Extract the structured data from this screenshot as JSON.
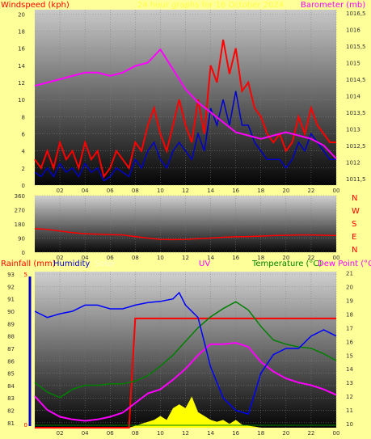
{
  "header": {
    "windspeed_label": "Windspeed (kph)",
    "barometer_label": "Barometer (mb)",
    "title_partial": "24 hour graphs for 16 October 2024",
    "rainfall_label": "Rainfall (mm)",
    "humidity_label": "Humidity",
    "solar_label": "Solar",
    "uv_label": "UV",
    "temperature_label": "Temperature (°C)",
    "dewpoint_label": "Dew Point (°C"
  },
  "direction_letters": [
    "N",
    "W",
    "S",
    "E",
    "N"
  ],
  "colors": {
    "background": "#ffff99",
    "windspeed": "#ff0000",
    "gust_avg": "#0000cc",
    "barometer": "#ff00ff",
    "direction": "#ff0000",
    "humidity": "#0000ff",
    "temperature": "#008000",
    "dewpoint": "#ff00ff",
    "rain": "#ff0000",
    "solar": "#ffff00"
  },
  "chart_data": [
    {
      "type": "line",
      "x_ticks": [
        "02",
        "04",
        "06",
        "08",
        "10",
        "12",
        "14",
        "16",
        "18",
        "20",
        "22",
        "00"
      ],
      "y_ticks_left": [
        "0",
        "2",
        "4",
        "6",
        "8",
        "10",
        "12",
        "14",
        "16",
        "18",
        "20"
      ],
      "y_ticks_right": [
        "1011,5",
        "1012",
        "1012,5",
        "1013",
        "1013,5",
        "1014",
        "1014,5",
        "1015",
        "1015,5",
        "1016",
        "1016,5"
      ],
      "ylim_left": [
        0,
        20.5
      ],
      "ylim_right": [
        1011.3,
        1016.6
      ],
      "xlim": [
        0,
        24
      ],
      "series": [
        {
          "name": "Windspeed (kph)",
          "axis": "left",
          "x": [
            0,
            0.5,
            1,
            1.5,
            2,
            2.5,
            3,
            3.5,
            4,
            4.5,
            5,
            5.5,
            6,
            6.5,
            7,
            7.5,
            8,
            8.5,
            9,
            9.5,
            10,
            10.5,
            11,
            11.5,
            12,
            12.5,
            13,
            13.5,
            14,
            14.5,
            15,
            15.5,
            16,
            16.5,
            17,
            17.5,
            18,
            18.5,
            19,
            19.5,
            20,
            20.5,
            21,
            21.5,
            22,
            22.5,
            23,
            23.5,
            24
          ],
          "y": [
            3,
            2,
            4,
            2,
            5,
            3,
            4,
            2,
            5,
            3,
            4,
            1,
            2,
            4,
            3,
            2,
            5,
            4,
            7,
            9,
            6,
            4,
            7,
            10,
            7,
            5,
            10,
            6,
            14,
            12,
            17,
            13,
            16,
            11,
            12,
            9,
            8,
            6,
            5,
            6,
            4,
            5,
            8,
            6,
            9,
            7,
            6,
            5,
            5
          ]
        },
        {
          "name": "Average windspeed",
          "axis": "left",
          "x": [
            0,
            0.5,
            1,
            1.5,
            2,
            2.5,
            3,
            3.5,
            4,
            4.5,
            5,
            5.5,
            6,
            6.5,
            7,
            7.5,
            8,
            8.5,
            9,
            9.5,
            10,
            10.5,
            11,
            11.5,
            12,
            12.5,
            13,
            13.5,
            14,
            14.5,
            15,
            15.5,
            16,
            16.5,
            17,
            17.5,
            18,
            18.5,
            19,
            19.5,
            20,
            20.5,
            21,
            21.5,
            22,
            22.5,
            23,
            23.5,
            24
          ],
          "y": [
            1.5,
            1,
            2,
            1,
            2.5,
            1.5,
            2,
            1,
            2.5,
            1.5,
            2,
            0.5,
            1,
            2,
            1.5,
            1,
            3,
            2,
            4,
            5,
            3,
            2,
            4,
            5,
            4,
            3,
            6,
            4,
            9,
            7,
            10,
            7,
            11,
            7,
            7,
            5,
            4,
            3,
            3,
            3,
            2,
            3,
            5,
            4,
            6,
            5,
            4,
            3,
            3
          ]
        },
        {
          "name": "Barometer (mb)",
          "axis": "right",
          "x": [
            0,
            1,
            2,
            3,
            4,
            5,
            6,
            7,
            8,
            9,
            10,
            11,
            12,
            13,
            14,
            15,
            16,
            17,
            18,
            19,
            20,
            21,
            22,
            23,
            24
          ],
          "y": [
            1014.3,
            1014.4,
            1014.5,
            1014.6,
            1014.7,
            1014.7,
            1014.6,
            1014.7,
            1014.9,
            1015.0,
            1015.4,
            1014.8,
            1014.2,
            1013.8,
            1013.5,
            1013.2,
            1012.9,
            1012.8,
            1012.7,
            1012.8,
            1012.9,
            1012.8,
            1012.7,
            1012.5,
            1012.1
          ]
        }
      ]
    },
    {
      "type": "line",
      "x_ticks": [
        "02",
        "04",
        "06",
        "08",
        "10",
        "12",
        "14",
        "16",
        "18",
        "20",
        "22",
        "00"
      ],
      "y_ticks_left": [
        "0",
        "90",
        "180",
        "270",
        "360"
      ],
      "ylim_left": [
        0,
        360
      ],
      "xlim": [
        0,
        24
      ],
      "series": [
        {
          "name": "Wind direction",
          "x": [
            0,
            1,
            2,
            3,
            4,
            5,
            6,
            7,
            8,
            9,
            10,
            11,
            12,
            13,
            14,
            15,
            16,
            17,
            18,
            19,
            20,
            21,
            22,
            23,
            24
          ],
          "y": [
            150,
            145,
            135,
            125,
            118,
            115,
            112,
            110,
            100,
            90,
            82,
            80,
            82,
            86,
            90,
            95,
            98,
            100,
            103,
            106,
            108,
            110,
            110,
            108,
            106
          ]
        }
      ]
    },
    {
      "type": "line",
      "x_ticks": [
        "02",
        "04",
        "06",
        "08",
        "10",
        "12",
        "14",
        "16",
        "18",
        "20",
        "22",
        "00"
      ],
      "y_ticks_left": [
        "81",
        "82",
        "83",
        "84",
        "85",
        "86",
        "87",
        "88",
        "89",
        "90",
        "91",
        "92",
        "93"
      ],
      "y_ticks_right": [
        "10",
        "11",
        "12",
        "13",
        "14",
        "15",
        "16",
        "17",
        "18",
        "19",
        "20",
        "21"
      ],
      "rain_ticks": [
        "0",
        "5"
      ],
      "ylim_left": [
        80.6,
        93.2
      ],
      "ylim_right": [
        9.7,
        21.1
      ],
      "xlim": [
        0,
        24
      ],
      "series": [
        {
          "name": "Humidity",
          "axis": "left",
          "x": [
            0,
            1,
            2,
            3,
            4,
            5,
            6,
            7,
            8,
            9,
            10,
            11,
            11.5,
            12,
            13,
            14,
            15,
            16,
            17,
            18,
            19,
            20,
            21,
            22,
            23,
            24
          ],
          "y": [
            90,
            89.5,
            89.8,
            90,
            90.5,
            90.5,
            90.2,
            90.2,
            90.5,
            90.7,
            90.8,
            91,
            91.5,
            90.5,
            89.5,
            85.5,
            83,
            82,
            81.7,
            85,
            86.5,
            87,
            87,
            88,
            88.5,
            88
          ]
        },
        {
          "name": "Temperature (°C)",
          "axis": "right",
          "x": [
            0,
            1,
            2,
            3,
            4,
            5,
            6,
            7,
            8,
            9,
            10,
            11,
            12,
            13,
            14,
            15,
            16,
            17,
            18,
            19,
            20,
            21,
            22,
            23,
            24
          ],
          "y": [
            13,
            12.3,
            11.9,
            12.5,
            12.8,
            12.8,
            12.9,
            12.9,
            13.1,
            13.5,
            14.2,
            15,
            16,
            17,
            17.8,
            18.4,
            18.9,
            18.3,
            17.1,
            16.1,
            15.8,
            15.6,
            15.5,
            15.1,
            14.6
          ]
        },
        {
          "name": "Dew Point (°C",
          "axis": "right",
          "x": [
            0,
            1,
            2,
            3,
            4,
            5,
            6,
            7,
            8,
            9,
            10,
            11,
            12,
            13,
            14,
            15,
            16,
            17,
            18,
            19,
            20,
            21,
            22,
            23,
            24
          ],
          "y": [
            12,
            11,
            10.5,
            10.3,
            10.2,
            10.3,
            10.5,
            10.8,
            11.5,
            12.2,
            12.5,
            13.2,
            14,
            15,
            15.8,
            15.8,
            15.9,
            15.6,
            14.5,
            13.8,
            13.3,
            13.0,
            12.8,
            12.5,
            12.1
          ]
        },
        {
          "name": "Rainfall (mm)",
          "axis": "rain",
          "x": [
            0,
            7.5,
            8,
            24
          ],
          "y": [
            0,
            0,
            3.5,
            3.5
          ]
        },
        {
          "name": "Solar",
          "axis": "solar",
          "x": [
            7.5,
            8,
            9,
            9.5,
            10,
            10.5,
            11,
            11.5,
            12,
            12.5,
            13,
            13.5,
            14,
            14.5,
            15,
            15.5,
            16,
            16.5,
            17,
            17.5,
            18
          ],
          "y": [
            0,
            0.5,
            1.5,
            2,
            3,
            2,
            5,
            6,
            5,
            8,
            4,
            3,
            2,
            1.5,
            2,
            1,
            2,
            0.8,
            0.5,
            0.3,
            0
          ]
        }
      ]
    }
  ]
}
